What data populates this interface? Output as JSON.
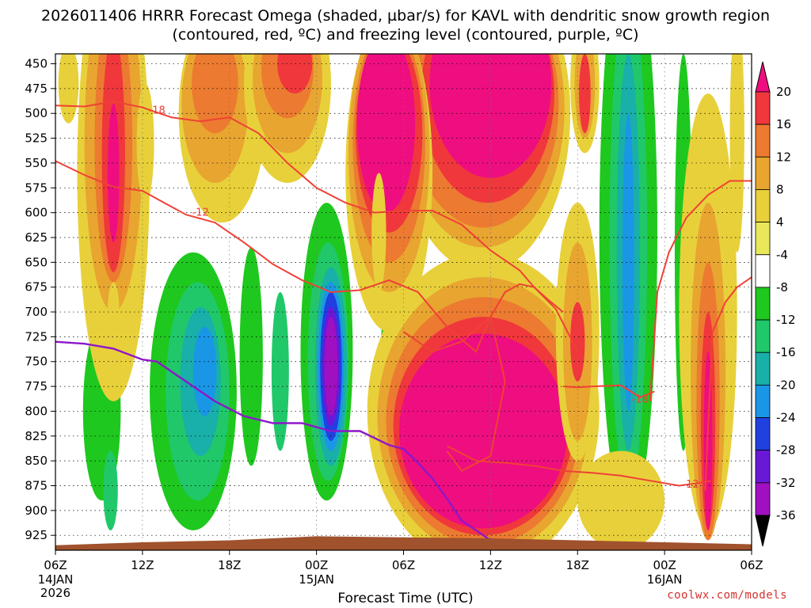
{
  "title": "2026011406 HRRR Forecast Omega (shaded, µbar/s) for KAVL with dendritic snow growth region (contoured, red, ºC) and freezing level (contoured, purple, ºC)",
  "credit": "coolwx.com/models",
  "chart_data": {
    "type": "heatmap",
    "title": "2026011406 HRRR Forecast Omega (shaded, µbar/s) for KAVL with dendritic snow growth region (contoured, red, ºC) and freezing level (contoured, purple, ºC)",
    "xlabel": "Forecast Time (UTC)",
    "ylabel": "",
    "x_hours": [
      0,
      6,
      12,
      18,
      24,
      30,
      36,
      42,
      48
    ],
    "x_ticks": [
      "06Z",
      "12Z",
      "18Z",
      "00Z",
      "06Z",
      "12Z",
      "18Z",
      "00Z",
      "06Z"
    ],
    "x_date_labels": [
      {
        "hour": 0,
        "lines": [
          "14JAN",
          "2026"
        ]
      },
      {
        "hour": 18,
        "lines": [
          "15JAN"
        ]
      },
      {
        "hour": 42,
        "lines": [
          "16JAN"
        ]
      }
    ],
    "y_ticks": [
      450,
      475,
      500,
      525,
      550,
      575,
      600,
      625,
      650,
      675,
      700,
      725,
      750,
      775,
      800,
      825,
      850,
      875,
      900,
      925
    ],
    "ylim": [
      440,
      940
    ],
    "grid": true,
    "colorbar": {
      "ticks": [
        20,
        16,
        12,
        8,
        4,
        -4,
        -8,
        -12,
        -16,
        -20,
        -24,
        -28,
        -32,
        -36
      ],
      "colors": [
        "#ee0e80",
        "#f0373c",
        "#ec7a30",
        "#e8a530",
        "#e8d03a",
        "#e8e85a",
        "#ffffff",
        "#1ec81e",
        "#20c86a",
        "#18b0a8",
        "#1a96e6",
        "#2040e0",
        "#6a18d8",
        "#a010c0",
        "#aaaaaa",
        "#000000"
      ]
    },
    "shaded_regions": [
      {
        "v": -8,
        "cx": 0.6,
        "cy": 890,
        "rx": 0.5,
        "ry": 45
      },
      {
        "v": -8,
        "cx": 3.0,
        "cy": 790,
        "rx": 2.0,
        "ry": 130
      },
      {
        "v": -12,
        "cx": 3.2,
        "cy": 800,
        "rx": 1.3,
        "ry": 90
      },
      {
        "v": -16,
        "cx": 3.8,
        "cy": 880,
        "rx": 0.5,
        "ry": 40
      },
      {
        "v": -8,
        "cx": 9.5,
        "cy": 770,
        "rx": 3.8,
        "ry": 175
      },
      {
        "v": -12,
        "cx": 9.5,
        "cy": 780,
        "rx": 3.0,
        "ry": 140
      },
      {
        "v": -16,
        "cx": 9.8,
        "cy": 780,
        "rx": 2.2,
        "ry": 110
      },
      {
        "v": -20,
        "cx": 10.0,
        "cy": 770,
        "rx": 1.4,
        "ry": 75
      },
      {
        "v": -24,
        "cx": 10.3,
        "cy": 760,
        "rx": 0.8,
        "ry": 45
      },
      {
        "v": -8,
        "cx": 13.5,
        "cy": 720,
        "rx": 1.0,
        "ry": 160
      },
      {
        "v": -12,
        "cx": 13.5,
        "cy": 745,
        "rx": 0.8,
        "ry": 110
      },
      {
        "v": -8,
        "cx": 15.5,
        "cy": 740,
        "rx": 0.8,
        "ry": 120
      },
      {
        "v": -16,
        "cx": 15.5,
        "cy": 760,
        "rx": 0.6,
        "ry": 80
      },
      {
        "v": -8,
        "cx": 18.5,
        "cy": 720,
        "rx": 2.4,
        "ry": 190
      },
      {
        "v": -12,
        "cx": 18.7,
        "cy": 740,
        "rx": 1.8,
        "ry": 150
      },
      {
        "v": -16,
        "cx": 18.8,
        "cy": 750,
        "rx": 1.4,
        "ry": 120
      },
      {
        "v": -20,
        "cx": 19.0,
        "cy": 755,
        "rx": 1.1,
        "ry": 100
      },
      {
        "v": -24,
        "cx": 19.0,
        "cy": 755,
        "rx": 0.9,
        "ry": 85
      },
      {
        "v": -28,
        "cx": 19.0,
        "cy": 755,
        "rx": 0.75,
        "ry": 75
      },
      {
        "v": -32,
        "cx": 19.0,
        "cy": 755,
        "rx": 0.6,
        "ry": 60
      },
      {
        "v": -36,
        "cx": 19.0,
        "cy": 755,
        "rx": 0.45,
        "ry": 50
      },
      {
        "v": -8,
        "cx": 24.0,
        "cy": 750,
        "rx": 2.0,
        "ry": 160
      },
      {
        "v": -12,
        "cx": 24.0,
        "cy": 760,
        "rx": 1.6,
        "ry": 130
      },
      {
        "v": -16,
        "cx": 24.0,
        "cy": 770,
        "rx": 1.2,
        "ry": 100
      },
      {
        "v": -20,
        "cx": 24.0,
        "cy": 775,
        "rx": 0.9,
        "ry": 80
      },
      {
        "v": -24,
        "cx": 24.0,
        "cy": 780,
        "rx": 0.7,
        "ry": 65
      },
      {
        "v": -32,
        "cx": 24.0,
        "cy": 780,
        "rx": 0.4,
        "ry": 35
      },
      {
        "v": -8,
        "cx": 33.5,
        "cy": 670,
        "rx": 0.4,
        "ry": 25
      },
      {
        "v": -8,
        "cx": 35.0,
        "cy": 760,
        "rx": 0.7,
        "ry": 90
      },
      {
        "v": -8,
        "cx": 39.5,
        "cy": 600,
        "rx": 2.6,
        "ry": 320
      },
      {
        "v": -12,
        "cx": 39.5,
        "cy": 620,
        "rx": 2.0,
        "ry": 290
      },
      {
        "v": -16,
        "cx": 39.5,
        "cy": 630,
        "rx": 1.3,
        "ry": 250
      },
      {
        "v": -20,
        "cx": 39.5,
        "cy": 640,
        "rx": 0.8,
        "ry": 200
      },
      {
        "v": -24,
        "cx": 39.5,
        "cy": 650,
        "rx": 0.4,
        "ry": 150
      },
      {
        "v": -8,
        "cx": 43.3,
        "cy": 600,
        "rx": 0.9,
        "ry": 260
      },
      {
        "v": -12,
        "cx": 43.3,
        "cy": 640,
        "rx": 0.6,
        "ry": 200
      },
      {
        "v": -8,
        "cx": 47.3,
        "cy": 830,
        "rx": 0.4,
        "ry": 40
      },
      {
        "v": -8,
        "cx": 47.3,
        "cy": 640,
        "rx": 0.4,
        "ry": 60
      },
      {
        "v": 4,
        "cx": 4.0,
        "cy": 560,
        "rx": 2.5,
        "ry": 230
      },
      {
        "v": 8,
        "cx": 4.0,
        "cy": 530,
        "rx": 2.0,
        "ry": 170
      },
      {
        "v": 12,
        "cx": 4.0,
        "cy": 530,
        "rx": 1.3,
        "ry": 140
      },
      {
        "v": 16,
        "cx": 4.0,
        "cy": 540,
        "rx": 0.8,
        "ry": 120
      },
      {
        "v": 20,
        "cx": 4.0,
        "cy": 560,
        "rx": 0.4,
        "ry": 70
      },
      {
        "v": 4,
        "cx": 0.9,
        "cy": 470,
        "rx": 0.7,
        "ry": 40
      },
      {
        "v": 4,
        "cx": 6.2,
        "cy": 530,
        "rx": 0.6,
        "ry": 60
      },
      {
        "v": 4,
        "cx": 11.5,
        "cy": 500,
        "rx": 3.0,
        "ry": 110
      },
      {
        "v": 8,
        "cx": 11.0,
        "cy": 490,
        "rx": 2.3,
        "ry": 80
      },
      {
        "v": 12,
        "cx": 11.0,
        "cy": 470,
        "rx": 1.6,
        "ry": 50
      },
      {
        "v": 4,
        "cx": 16.0,
        "cy": 470,
        "rx": 3.0,
        "ry": 100
      },
      {
        "v": 8,
        "cx": 16.0,
        "cy": 465,
        "rx": 2.4,
        "ry": 75
      },
      {
        "v": 12,
        "cx": 16.0,
        "cy": 455,
        "rx": 1.8,
        "ry": 50
      },
      {
        "v": 16,
        "cx": 16.5,
        "cy": 450,
        "rx": 1.2,
        "ry": 30
      },
      {
        "v": 4,
        "cx": 29.5,
        "cy": 500,
        "rx": 6.0,
        "ry": 160
      },
      {
        "v": 8,
        "cx": 29.5,
        "cy": 495,
        "rx": 5.6,
        "ry": 140
      },
      {
        "v": 12,
        "cx": 29.5,
        "cy": 490,
        "rx": 5.2,
        "ry": 125
      },
      {
        "v": 16,
        "cx": 29.8,
        "cy": 480,
        "rx": 4.6,
        "ry": 110
      },
      {
        "v": 20,
        "cx": 30.0,
        "cy": 470,
        "rx": 4.2,
        "ry": 95
      },
      {
        "v": 4,
        "cx": 23.0,
        "cy": 560,
        "rx": 3.0,
        "ry": 160
      },
      {
        "v": 8,
        "cx": 23.0,
        "cy": 540,
        "rx": 2.8,
        "ry": 140
      },
      {
        "v": 12,
        "cx": 23.0,
        "cy": 530,
        "rx": 2.5,
        "ry": 120
      },
      {
        "v": 16,
        "cx": 23.0,
        "cy": 520,
        "rx": 2.3,
        "ry": 100
      },
      {
        "v": 20,
        "cx": 22.8,
        "cy": 510,
        "rx": 2.0,
        "ry": 90
      },
      {
        "v": 4,
        "cx": 29.5,
        "cy": 800,
        "rx": 8.0,
        "ry": 160
      },
      {
        "v": 8,
        "cx": 29.5,
        "cy": 805,
        "rx": 7.3,
        "ry": 140
      },
      {
        "v": 12,
        "cx": 29.5,
        "cy": 810,
        "rx": 6.7,
        "ry": 125
      },
      {
        "v": 16,
        "cx": 29.5,
        "cy": 815,
        "rx": 6.2,
        "ry": 110
      },
      {
        "v": 20,
        "cx": 29.5,
        "cy": 820,
        "rx": 5.8,
        "ry": 98
      },
      {
        "v": 4,
        "cx": 22.3,
        "cy": 620,
        "rx": 0.5,
        "ry": 60
      },
      {
        "v": 4,
        "cx": 36.5,
        "cy": 470,
        "rx": 1.0,
        "ry": 70
      },
      {
        "v": 8,
        "cx": 36.5,
        "cy": 470,
        "rx": 0.7,
        "ry": 55
      },
      {
        "v": 16,
        "cx": 36.5,
        "cy": 480,
        "rx": 0.4,
        "ry": 40
      },
      {
        "v": 4,
        "cx": 45.0,
        "cy": 700,
        "rx": 2.0,
        "ry": 220
      },
      {
        "v": 8,
        "cx": 45.0,
        "cy": 760,
        "rx": 1.2,
        "ry": 170
      },
      {
        "v": 12,
        "cx": 45.0,
        "cy": 790,
        "rx": 0.8,
        "ry": 140
      },
      {
        "v": 16,
        "cx": 45.0,
        "cy": 810,
        "rx": 0.5,
        "ry": 110
      },
      {
        "v": 20,
        "cx": 45.0,
        "cy": 830,
        "rx": 0.3,
        "ry": 90
      },
      {
        "v": 4,
        "cx": 47.0,
        "cy": 520,
        "rx": 0.5,
        "ry": 120
      },
      {
        "v": 4,
        "cx": 36.0,
        "cy": 720,
        "rx": 1.5,
        "ry": 130
      },
      {
        "v": 8,
        "cx": 36.0,
        "cy": 730,
        "rx": 1.0,
        "ry": 100
      },
      {
        "v": 16,
        "cx": 36.0,
        "cy": 730,
        "rx": 0.5,
        "ry": 40
      },
      {
        "v": 4,
        "cx": 39.0,
        "cy": 890,
        "rx": 3.0,
        "ry": 50
      },
      {
        "v": 4,
        "cx": 4.0,
        "cy": 700,
        "rx": 0.4,
        "ry": 30
      }
    ],
    "dgz_contours": [
      {
        "label": "-18",
        "hours": [
          0,
          2,
          4,
          6,
          8,
          10,
          12,
          14,
          16,
          18,
          20,
          22,
          24,
          26,
          28,
          30,
          32,
          33,
          34.5,
          36
        ],
        "pressure": [
          492,
          493,
          488,
          494,
          504,
          508,
          504,
          520,
          550,
          575,
          590,
          600,
          598,
          598,
          612,
          638,
          658,
          675,
          697,
          740
        ],
        "label_at": [
          7,
          497
        ]
      },
      {
        "label": "-12",
        "hours": [
          0,
          2,
          4,
          6,
          7.5,
          9,
          11,
          13,
          15,
          17,
          19,
          21,
          23,
          25,
          27,
          29,
          30,
          31,
          32,
          33,
          34,
          35
        ],
        "pressure": [
          548,
          562,
          574,
          578,
          590,
          602,
          610,
          630,
          652,
          668,
          680,
          678,
          668,
          680,
          715,
          740,
          705,
          680,
          672,
          675,
          688,
          700
        ],
        "label_at": [
          10,
          600
        ]
      },
      {
        "label": "-18",
        "hours": [
          24,
          26,
          28,
          30,
          31,
          30,
          28,
          27
        ],
        "pressure": [
          720,
          740,
          730,
          705,
          770,
          845,
          860,
          840
        ],
        "label_at": null
      },
      {
        "label": "-12",
        "hours": [
          27,
          29,
          31,
          33,
          35,
          37,
          39,
          41,
          43,
          44.5,
          45.2
        ],
        "pressure": [
          835,
          850,
          852,
          855,
          860,
          862,
          865,
          870,
          875,
          872,
          870
        ],
        "label_at": [
          43.8,
          874
        ]
      },
      {
        "label": "-18",
        "hours": [
          35,
          36,
          37,
          39,
          40.3,
          41.3
        ],
        "pressure": [
          775,
          776,
          775,
          774,
          786,
          780
        ],
        "label_at": [
          40.3,
          788
        ]
      },
      {
        "label": "",
        "hours": [
          41,
          41.5,
          42.3,
          43.5,
          45,
          46.5,
          48
        ],
        "pressure": [
          790,
          680,
          640,
          605,
          582,
          568,
          568
        ],
        "label_at": null
      },
      {
        "label": "",
        "hours": [
          44.8,
          45.3,
          46.2,
          47,
          48
        ],
        "pressure": [
          880,
          720,
          690,
          675,
          665
        ],
        "label_at": null
      }
    ],
    "freezing_level": {
      "hours": [
        0,
        2,
        4,
        6,
        7,
        8,
        9.5,
        11,
        13,
        15,
        17,
        19,
        21,
        23,
        24,
        25,
        26,
        27,
        28,
        29,
        30.5
      ],
      "pressure": [
        730,
        732,
        737,
        748,
        750,
        760,
        775,
        790,
        805,
        812,
        812,
        820,
        820,
        834,
        838,
        852,
        868,
        888,
        910,
        920,
        935
      ]
    },
    "terrain_pressure": {
      "hours": [
        0,
        6,
        12,
        18,
        24,
        30,
        36,
        42,
        48
      ],
      "pressure": [
        935,
        932,
        930,
        926,
        927,
        928,
        930,
        932,
        934
      ]
    }
  }
}
